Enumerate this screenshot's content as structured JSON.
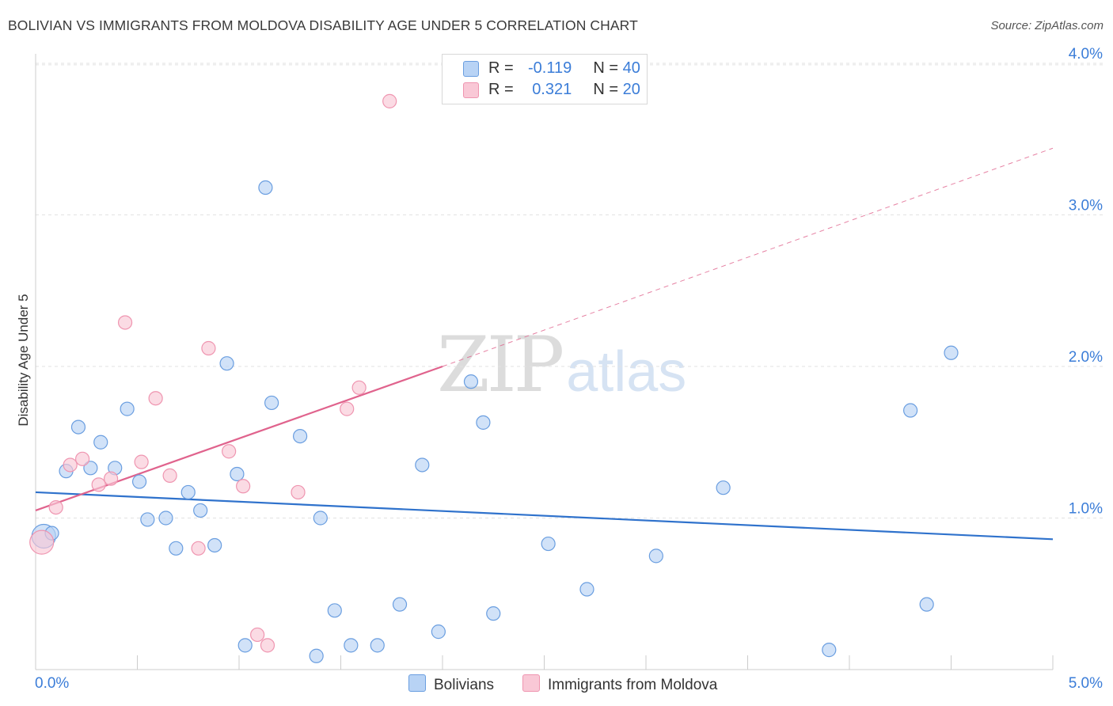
{
  "header": {
    "title": "BOLIVIAN VS IMMIGRANTS FROM MOLDOVA DISABILITY AGE UNDER 5 CORRELATION CHART",
    "source": "Source: ZipAtlas.com"
  },
  "watermark": {
    "zip": "ZIP",
    "atlas": "atlas"
  },
  "legend": {
    "bolivians": {
      "r_label": "R =",
      "r_value": "-0.119",
      "n_label": "N =",
      "n_value": "40"
    },
    "moldova": {
      "r_label": "R =",
      "r_value": "0.321",
      "n_label": "N =",
      "n_value": "20"
    }
  },
  "bottom_legend": {
    "bolivians": "Bolivians",
    "moldova": "Immigrants from Moldova"
  },
  "colors": {
    "blue_fill": "#b8d3f5",
    "blue_stroke": "#6a9ee0",
    "blue_line": "#2f72cc",
    "pink_fill": "#f9c8d6",
    "pink_stroke": "#ef95b0",
    "pink_line": "#e0638d",
    "axis_text": "#3b7dd8",
    "grid": "#e2e2e2"
  },
  "chart_data": {
    "type": "scatter",
    "title": "BOLIVIAN VS IMMIGRANTS FROM MOLDOVA DISABILITY AGE UNDER 5 CORRELATION CHART",
    "xlabel": "",
    "ylabel": "Disability Age Under 5",
    "xlim": [
      0,
      5
    ],
    "ylim": [
      0,
      4.1
    ],
    "x_tick_labels": [
      "0.0%",
      "5.0%"
    ],
    "y_ticks": [
      1,
      2,
      3,
      4
    ],
    "y_tick_labels": [
      "1.0%",
      "2.0%",
      "3.0%",
      "4.0%"
    ],
    "grid": true,
    "series": [
      {
        "name": "Bolivians",
        "color": "blue",
        "points": [
          {
            "x": 0.04,
            "y": 0.88,
            "size": "large"
          },
          {
            "x": 0.08,
            "y": 0.9
          },
          {
            "x": 0.15,
            "y": 1.31
          },
          {
            "x": 0.21,
            "y": 1.6
          },
          {
            "x": 0.27,
            "y": 1.33
          },
          {
            "x": 0.32,
            "y": 1.5
          },
          {
            "x": 0.39,
            "y": 1.33
          },
          {
            "x": 0.45,
            "y": 1.72
          },
          {
            "x": 0.51,
            "y": 1.24
          },
          {
            "x": 0.55,
            "y": 0.99
          },
          {
            "x": 0.64,
            "y": 1.0
          },
          {
            "x": 0.69,
            "y": 0.8
          },
          {
            "x": 0.75,
            "y": 1.17
          },
          {
            "x": 0.81,
            "y": 1.05
          },
          {
            "x": 0.88,
            "y": 0.82
          },
          {
            "x": 0.94,
            "y": 2.02
          },
          {
            "x": 0.99,
            "y": 1.29
          },
          {
            "x": 1.03,
            "y": 0.16
          },
          {
            "x": 1.13,
            "y": 3.18
          },
          {
            "x": 1.16,
            "y": 1.76
          },
          {
            "x": 1.3,
            "y": 1.54
          },
          {
            "x": 1.38,
            "y": 0.09
          },
          {
            "x": 1.4,
            "y": 1.0
          },
          {
            "x": 1.47,
            "y": 0.39
          },
          {
            "x": 1.55,
            "y": 0.16
          },
          {
            "x": 1.68,
            "y": 0.16
          },
          {
            "x": 1.79,
            "y": 0.43
          },
          {
            "x": 1.9,
            "y": 1.35
          },
          {
            "x": 1.98,
            "y": 0.25
          },
          {
            "x": 2.14,
            "y": 1.9
          },
          {
            "x": 2.2,
            "y": 1.63
          },
          {
            "x": 2.25,
            "y": 0.37
          },
          {
            "x": 2.52,
            "y": 0.83
          },
          {
            "x": 2.71,
            "y": 0.53
          },
          {
            "x": 3.05,
            "y": 0.75
          },
          {
            "x": 3.38,
            "y": 1.2
          },
          {
            "x": 3.9,
            "y": 0.13
          },
          {
            "x": 4.3,
            "y": 1.71
          },
          {
            "x": 4.38,
            "y": 0.43
          },
          {
            "x": 4.5,
            "y": 2.09
          }
        ],
        "trend": {
          "x1": 0.0,
          "y1": 1.17,
          "x2": 5.0,
          "y2": 0.86
        }
      },
      {
        "name": "Immigrants from Moldova",
        "color": "pink",
        "points": [
          {
            "x": 0.03,
            "y": 0.84,
            "size": "large"
          },
          {
            "x": 0.1,
            "y": 1.07
          },
          {
            "x": 0.17,
            "y": 1.35
          },
          {
            "x": 0.23,
            "y": 1.39
          },
          {
            "x": 0.31,
            "y": 1.22
          },
          {
            "x": 0.37,
            "y": 1.26
          },
          {
            "x": 0.44,
            "y": 2.29
          },
          {
            "x": 0.52,
            "y": 1.37
          },
          {
            "x": 0.59,
            "y": 1.79
          },
          {
            "x": 0.66,
            "y": 1.28
          },
          {
            "x": 0.8,
            "y": 0.8
          },
          {
            "x": 0.85,
            "y": 2.12
          },
          {
            "x": 0.95,
            "y": 1.44
          },
          {
            "x": 1.02,
            "y": 1.21
          },
          {
            "x": 1.09,
            "y": 0.23
          },
          {
            "x": 1.14,
            "y": 0.16
          },
          {
            "x": 1.29,
            "y": 1.17
          },
          {
            "x": 1.53,
            "y": 1.72
          },
          {
            "x": 1.59,
            "y": 1.86
          },
          {
            "x": 1.74,
            "y": 3.75
          }
        ],
        "trend": {
          "x1": 0.0,
          "y1": 1.05,
          "x2": 2.0,
          "y2": 2.0
        },
        "trend_extension": {
          "x1": 2.0,
          "y1": 2.0,
          "x2": 5.0,
          "y2": 3.44
        }
      }
    ]
  }
}
